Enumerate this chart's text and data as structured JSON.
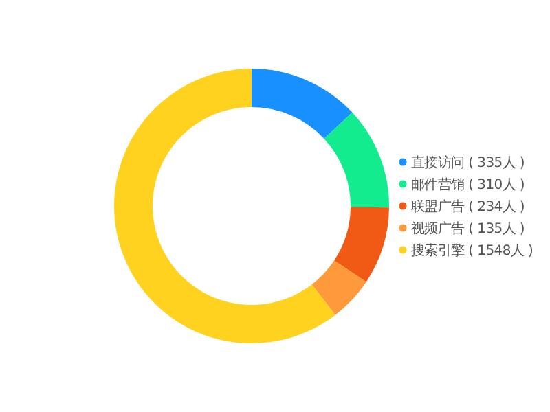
{
  "chart_data": {
    "type": "donut",
    "categories": [
      "直接访问 ( 335人 )",
      "邮件营销 ( 310人 )",
      "联盟广告 ( 234人 )",
      "视频广告 ( 135人 )",
      "搜索引擎 ( 1548人 )"
    ],
    "values": [
      335,
      310,
      234,
      135,
      1548
    ],
    "colors": [
      "#1890ff",
      "#13ec8e",
      "#f05a14",
      "#ff9a3c",
      "#ffd21f"
    ],
    "legend": "right"
  }
}
